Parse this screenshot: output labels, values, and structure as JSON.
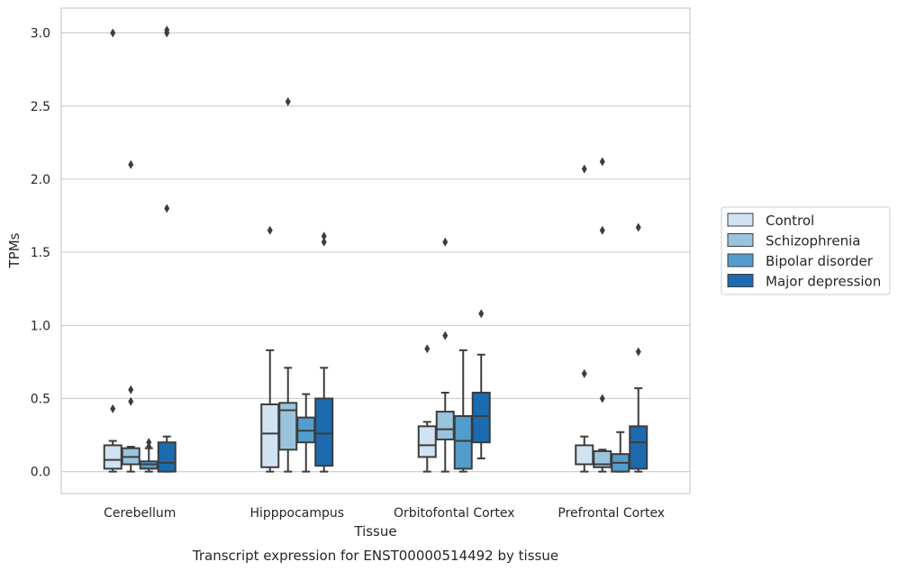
{
  "chart_data": {
    "type": "box",
    "xlabel": "Tissue",
    "ylabel": "TPMs",
    "caption": "Transcript expression for ENST00000514492 by tissue",
    "categories": [
      "Cerebellum",
      "Hipppocampus",
      "Orbitofontal Cortex",
      "Prefrontal Cortex"
    ],
    "ylim": [
      -0.15,
      3.17
    ],
    "yticks": [
      0.0,
      0.5,
      1.0,
      1.5,
      2.0,
      2.5,
      3.0
    ],
    "ytick_labels": [
      "0.0",
      "0.5",
      "1.0",
      "1.5",
      "2.0",
      "2.5",
      "3.0"
    ],
    "grid": "horizontal",
    "legend_position": "right",
    "series": [
      {
        "name": "Control",
        "color": "#d1e2f2",
        "boxes": [
          {
            "whislo": 0.0,
            "q1": 0.02,
            "med": 0.08,
            "q3": 0.18,
            "whishi": 0.21,
            "fliers": [
              0.43,
              3.0
            ]
          },
          {
            "whislo": 0.0,
            "q1": 0.03,
            "med": 0.26,
            "q3": 0.46,
            "whishi": 0.83,
            "fliers": [
              1.65
            ]
          },
          {
            "whislo": 0.0,
            "q1": 0.1,
            "med": 0.18,
            "q3": 0.31,
            "whishi": 0.34,
            "fliers": [
              0.84
            ]
          },
          {
            "whislo": 0.0,
            "q1": 0.05,
            "med": 0.05,
            "q3": 0.18,
            "whishi": 0.24,
            "fliers": [
              0.67,
              2.07
            ]
          }
        ]
      },
      {
        "name": "Schizophrenia",
        "color": "#9ac4dd",
        "boxes": [
          {
            "whislo": 0.0,
            "q1": 0.05,
            "med": 0.1,
            "q3": 0.16,
            "whishi": 0.17,
            "fliers": [
              0.48,
              0.56,
              2.1
            ]
          },
          {
            "whislo": 0.0,
            "q1": 0.15,
            "med": 0.42,
            "q3": 0.47,
            "whishi": 0.71,
            "fliers": [
              2.53
            ]
          },
          {
            "whislo": 0.0,
            "q1": 0.22,
            "med": 0.29,
            "q3": 0.41,
            "whishi": 0.54,
            "fliers": [
              0.93,
              1.57
            ]
          },
          {
            "whislo": 0.0,
            "q1": 0.03,
            "med": 0.05,
            "q3": 0.14,
            "whishi": 0.15,
            "fliers": [
              0.5,
              1.65,
              2.12
            ]
          }
        ]
      },
      {
        "name": "Bipolar disorder",
        "color": "#529dcc",
        "boxes": [
          {
            "whislo": 0.0,
            "q1": 0.02,
            "med": 0.05,
            "q3": 0.07,
            "whishi": 0.16,
            "fliers": [
              0.17,
              0.2
            ]
          },
          {
            "whislo": 0.0,
            "q1": 0.2,
            "med": 0.28,
            "q3": 0.37,
            "whishi": 0.53,
            "fliers": []
          },
          {
            "whislo": 0.0,
            "q1": 0.02,
            "med": 0.21,
            "q3": 0.38,
            "whishi": 0.83,
            "fliers": []
          },
          {
            "whislo": 0.0,
            "q1": 0.0,
            "med": 0.06,
            "q3": 0.12,
            "whishi": 0.27,
            "fliers": []
          }
        ]
      },
      {
        "name": "Major depression",
        "color": "#1c6aaf",
        "boxes": [
          {
            "whislo": 0.0,
            "q1": 0.0,
            "med": 0.06,
            "q3": 0.2,
            "whishi": 0.24,
            "fliers": [
              1.8,
              3.0,
              3.02
            ]
          },
          {
            "whislo": 0.0,
            "q1": 0.04,
            "med": 0.26,
            "q3": 0.5,
            "whishi": 0.71,
            "fliers": [
              1.57,
              1.61
            ]
          },
          {
            "whislo": 0.09,
            "q1": 0.2,
            "med": 0.38,
            "q3": 0.54,
            "whishi": 0.8,
            "fliers": [
              1.08
            ]
          },
          {
            "whislo": 0.0,
            "q1": 0.02,
            "med": 0.2,
            "q3": 0.31,
            "whishi": 0.57,
            "fliers": [
              0.82,
              1.67
            ]
          }
        ]
      }
    ]
  }
}
